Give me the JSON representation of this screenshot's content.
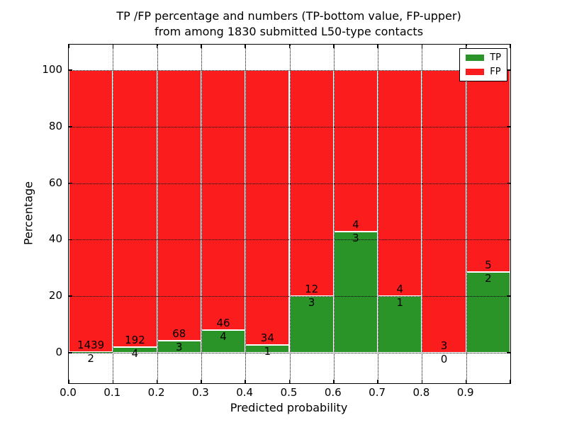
{
  "chart_data": {
    "type": "bar",
    "stacked": true,
    "normalized_to_percent": 100,
    "title_line1": "TP /FP percentage and numbers (TP-bottom value, FP-upper)",
    "title_line2": "from among 1830 submitted L50-type contacts",
    "xlabel": "Predicted probability",
    "ylabel": "Percentage",
    "total_submitted": 1830,
    "bin_starts": [
      0.0,
      0.1,
      0.2,
      0.3,
      0.4,
      0.5,
      0.6,
      0.7,
      0.8,
      0.9
    ],
    "bin_width": 0.1,
    "xlim": [
      0.0,
      1.0
    ],
    "ylim": [
      -11,
      109
    ],
    "x_tick_labels": [
      "0.0",
      "0.1",
      "0.2",
      "0.3",
      "0.4",
      "0.5",
      "0.6",
      "0.7",
      "0.8",
      "0.9"
    ],
    "y_ticks": [
      0,
      20,
      40,
      60,
      80,
      100
    ],
    "y_tick_labels": [
      "0",
      "20",
      "40",
      "60",
      "80",
      "100"
    ],
    "grid": "dotted",
    "series": [
      {
        "name": "TP",
        "color": "#2a9428",
        "values": [
          2,
          4,
          3,
          4,
          1,
          3,
          3,
          1,
          0,
          2
        ]
      },
      {
        "name": "FP",
        "color": "#fb1d1d",
        "values": [
          1439,
          192,
          68,
          46,
          34,
          12,
          4,
          4,
          3,
          5
        ]
      }
    ],
    "tp_percent_per_bin": [
      0.14,
      2.04,
      4.23,
      8.0,
      2.86,
      20.0,
      42.86,
      20.0,
      0.0,
      28.57
    ],
    "legend": {
      "position": "upper right",
      "entries": [
        {
          "label": "TP",
          "color": "#2a9428"
        },
        {
          "label": "FP",
          "color": "#fb1d1d"
        }
      ]
    }
  }
}
